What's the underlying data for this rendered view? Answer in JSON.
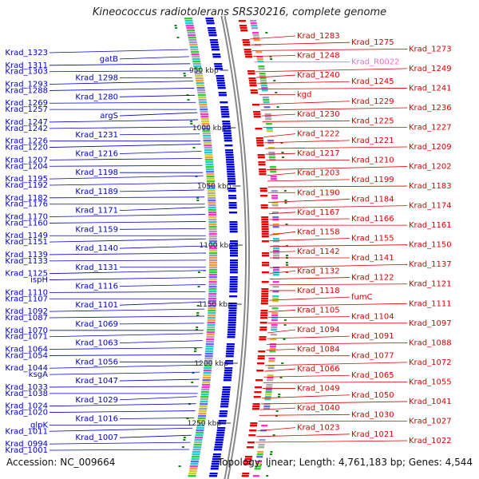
{
  "title": "Kineococcus radiotolerans SRS30216, complete genome",
  "accession": "Accession: NC_009664",
  "topology": "Topology: linear; Length: 4,761,183 bp; Genes: 4,544",
  "colors": {
    "left_labels": "#0000cc",
    "right_labels": "#dd0000",
    "pink_label": "#ff66cc",
    "ticks": "#333333",
    "backbone": "#888888"
  },
  "ticks": [
    {
      "label": "950 kbp"
    },
    {
      "label": "1000 kbp"
    },
    {
      "label": "1050 kbp"
    },
    {
      "label": "1100 kbp"
    },
    {
      "label": "1150 kbp"
    },
    {
      "label": "1200 kbp"
    },
    {
      "label": "1250 kbp"
    }
  ],
  "left_labels": [
    "Krad_1323",
    "gatB",
    "Krad_1311",
    "Krad_1303",
    "Krad_1298",
    "Krad_1293",
    "Krad_1288",
    "Krad_1280",
    "Krad_1269",
    "Krad_1257",
    "argS",
    "Krad_1247",
    "Krad_1242",
    "Krad_1231",
    "Krad_1226",
    "Krad_1220",
    "Krad_1216",
    "Krad_1207",
    "Krad_1204",
    "Krad_1198",
    "Krad_1195",
    "Krad_1192",
    "Krad_1189",
    "Krad_1182",
    "Krad_1176",
    "Krad_1171",
    "Krad_1170",
    "Krad_1160",
    "Krad_1159",
    "Krad_1149",
    "Krad_1151",
    "Krad_1140",
    "Krad_1139",
    "Krad_1133",
    "Krad_1131",
    "Krad_1125",
    "ispH",
    "Krad_1116",
    "Krad_1110",
    "Krad_1107",
    "Krad_1101",
    "Krad_1092",
    "Krad_1087",
    "Krad_1069",
    "Krad_1070",
    "Krad_1071",
    "Krad_1063",
    "Krad_1064",
    "Krad_1054",
    "Krad_1056",
    "Krad_1044",
    "ksgA",
    "Krad_1047",
    "Krad_1033",
    "Krad_1038",
    "Krad_1029",
    "Krad_1024",
    "Krad_1020",
    "Krad_1016",
    "glpK",
    "Krad_1011",
    "Krad_1007",
    "Krad_0994",
    "Krad_1001"
  ],
  "right_labels": [
    "Krad_1283",
    "Krad_1275",
    "Krad_1273",
    "Krad_1248",
    "Krad_R0022",
    "Krad_1249",
    "Krad_1240",
    "Krad_1245",
    "Krad_1241",
    "kgd",
    "Krad_1229",
    "Krad_1236",
    "Krad_1230",
    "Krad_1225",
    "Krad_1227",
    "Krad_1222",
    "Krad_1221",
    "Krad_1209",
    "Krad_1217",
    "Krad_1210",
    "Krad_1202",
    "Krad_1203",
    "Krad_1199",
    "Krad_1183",
    "Krad_1190",
    "Krad_1184",
    "Krad_1174",
    "Krad_1167",
    "Krad_1166",
    "Krad_1161",
    "Krad_1158",
    "Krad_1155",
    "Krad_1150",
    "Krad_1142",
    "Krad_1141",
    "Krad_1137",
    "Krad_1132",
    "Krad_1122",
    "Krad_1121",
    "Krad_1118",
    "fumC",
    "Krad_1111",
    "Krad_1105",
    "Krad_1104",
    "Krad_1097",
    "Krad_1094",
    "Krad_1091",
    "Krad_1088",
    "Krad_1084",
    "Krad_1077",
    "Krad_1072",
    "Krad_1066",
    "Krad_1065",
    "Krad_1055",
    "Krad_1049",
    "Krad_1050",
    "Krad_1041",
    "Krad_1040",
    "Krad_1030",
    "Krad_1027",
    "Krad_1023",
    "Krad_1021",
    "Krad_1022"
  ]
}
